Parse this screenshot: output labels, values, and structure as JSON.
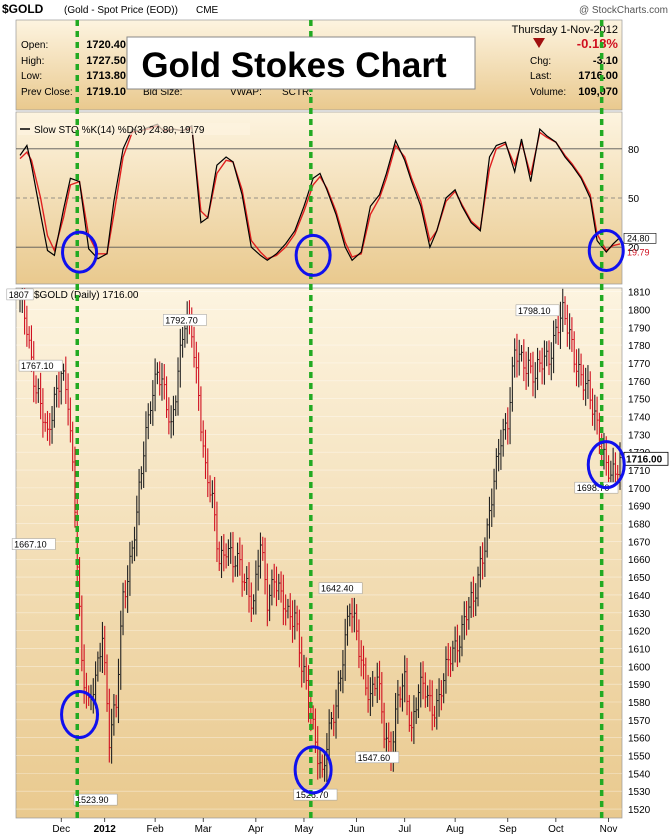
{
  "header": {
    "symbol": "$GOLD",
    "description": "(Gold - Spot Price (EOD))",
    "exchange": "CME",
    "date": "Thursday  1-Nov-2012",
    "watermark": "@ StockCharts.com"
  },
  "quote": {
    "labels": [
      "Open:",
      "High:",
      "Low:",
      "Prev Close:"
    ],
    "values": [
      "1720.40",
      "1727.50",
      "1713.80",
      "1719.10"
    ],
    "extra_labels": [
      "Bid Size:",
      "VWAP:",
      "SCTR:"
    ],
    "change_pct": "-0.18%",
    "right_labels": [
      "Chg:",
      "Last:",
      "Volume:"
    ],
    "right_values": [
      "-3.10",
      "1716.00",
      "109,070"
    ]
  },
  "title_box": "Gold Stokes Chart",
  "colors": {
    "price_up": "#222222",
    "price_down": "#d01020",
    "sto_k": "#000000",
    "sto_d": "#e02020",
    "marker_line": "#22aa22",
    "circle": "#1010ee",
    "panel_bg_top": "#fdf4e0",
    "panel_bg_bottom": "#e9c98e"
  },
  "chart_data": [
    {
      "type": "line",
      "legend": "Slow STO %K(14) %D(3) 24.80, 19.79",
      "series": [
        {
          "name": "%K(14)",
          "last": 24.8
        },
        {
          "name": "%D(3)",
          "last": 19.79
        }
      ],
      "y_ticks": [
        80,
        50,
        20
      ],
      "ylim": [
        0,
        100
      ],
      "x": [
        0,
        3,
        5,
        9,
        12,
        15,
        19,
        22,
        26,
        30,
        34,
        38,
        41,
        45,
        49,
        52,
        56,
        60,
        63,
        67,
        71,
        75,
        79,
        82,
        86,
        90,
        93,
        97,
        101,
        105,
        108,
        112,
        116,
        120,
        124,
        128,
        131,
        134,
        138,
        142,
        145,
        149,
        153,
        157,
        160,
        164,
        168,
        171,
        175,
        179,
        182,
        186,
        190,
        193,
        197,
        201,
        205,
        208,
        212,
        216,
        219,
        223,
        227,
        230,
        234,
        238,
        241,
        245,
        249,
        252,
        256,
        259,
        262
      ],
      "k": [
        76,
        82,
        70,
        40,
        18,
        15,
        43,
        62,
        60,
        19,
        13,
        16,
        48,
        80,
        92,
        91,
        93,
        95,
        90,
        92,
        91,
        94,
        35,
        38,
        70,
        75,
        72,
        52,
        20,
        15,
        12,
        16,
        22,
        30,
        45,
        62,
        65,
        55,
        40,
        20,
        12,
        17,
        45,
        52,
        65,
        85,
        73,
        60,
        45,
        20,
        30,
        50,
        55,
        45,
        35,
        30,
        75,
        82,
        84,
        66,
        86,
        60,
        92,
        88,
        84,
        75,
        70,
        62,
        50,
        24,
        17,
        22,
        26
      ],
      "d": [
        74,
        78,
        73,
        50,
        27,
        18,
        38,
        58,
        60,
        27,
        16,
        16,
        40,
        75,
        90,
        91,
        92,
        94,
        91,
        92,
        91,
        93,
        42,
        38,
        65,
        73,
        72,
        55,
        24,
        17,
        13,
        15,
        20,
        28,
        42,
        58,
        63,
        56,
        42,
        23,
        14,
        16,
        40,
        50,
        62,
        82,
        75,
        62,
        48,
        24,
        30,
        48,
        54,
        46,
        36,
        31,
        68,
        80,
        83,
        70,
        84,
        64,
        90,
        87,
        84,
        76,
        71,
        63,
        52,
        28,
        18,
        21,
        22
      ],
      "markers_x": [
        25,
        127,
        254
      ],
      "circles": [
        {
          "x": 26,
          "y": 17
        },
        {
          "x": 128,
          "y": 15
        },
        {
          "x": 256,
          "y": 18
        }
      ]
    },
    {
      "type": "bar",
      "legend": "$GOLD (Daily) 1716.00",
      "ylim": [
        1515,
        1812
      ],
      "y_ticks": [
        1520,
        1530,
        1540,
        1550,
        1560,
        1570,
        1580,
        1590,
        1600,
        1610,
        1620,
        1630,
        1640,
        1650,
        1660,
        1670,
        1680,
        1690,
        1700,
        1710,
        1720,
        1730,
        1740,
        1750,
        1760,
        1770,
        1780,
        1790,
        1800,
        1810
      ],
      "x_labels": [
        {
          "x": 18,
          "label": "Dec"
        },
        {
          "x": 37,
          "label": "2012"
        },
        {
          "x": 59,
          "label": "Feb"
        },
        {
          "x": 80,
          "label": "Mar"
        },
        {
          "x": 103,
          "label": "Apr"
        },
        {
          "x": 124,
          "label": "May"
        },
        {
          "x": 147,
          "label": "Jun"
        },
        {
          "x": 168,
          "label": "Jul"
        },
        {
          "x": 190,
          "label": "Aug"
        },
        {
          "x": 213,
          "label": "Sep"
        },
        {
          "x": 234,
          "label": "Oct"
        },
        {
          "x": 257,
          "label": "Nov"
        }
      ],
      "close_x": [
        0,
        3,
        6,
        9,
        12,
        15,
        18,
        21,
        24,
        27,
        30,
        33,
        36,
        39,
        42,
        45,
        48,
        51,
        54,
        57,
        60,
        63,
        66,
        69,
        72,
        75,
        78,
        81,
        84,
        87,
        90,
        93,
        96,
        99,
        102,
        105,
        108,
        111,
        114,
        117,
        120,
        123,
        126,
        129,
        132,
        135,
        138,
        141,
        144,
        147,
        150,
        153,
        156,
        159,
        162,
        165,
        168,
        171,
        174,
        177,
        180,
        183,
        186,
        189,
        192,
        195,
        198,
        201,
        204,
        207,
        210,
        213,
        216,
        219,
        222,
        225,
        228,
        231,
        234,
        237,
        240,
        243,
        246,
        249,
        252,
        255,
        258,
        261,
        262
      ],
      "close": [
        1802,
        1790,
        1765,
        1745,
        1725,
        1752,
        1767,
        1745,
        1690,
        1605,
        1575,
        1590,
        1622,
        1560,
        1575,
        1640,
        1660,
        1682,
        1720,
        1752,
        1765,
        1750,
        1735,
        1768,
        1790,
        1788,
        1755,
        1708,
        1690,
        1662,
        1668,
        1655,
        1658,
        1648,
        1632,
        1668,
        1640,
        1650,
        1635,
        1630,
        1632,
        1598,
        1580,
        1562,
        1538,
        1560,
        1580,
        1608,
        1630,
        1618,
        1600,
        1580,
        1592,
        1567,
        1552,
        1578,
        1592,
        1567,
        1586,
        1585,
        1578,
        1582,
        1595,
        1610,
        1618,
        1628,
        1635,
        1660,
        1675,
        1700,
        1730,
        1740,
        1773,
        1770,
        1772,
        1762,
        1768,
        1775,
        1790,
        1795,
        1786,
        1772,
        1758,
        1748,
        1738,
        1718,
        1702,
        1712,
        1716
      ],
      "labels": [
        {
          "x": 0,
          "y": 1807,
          "text": "1807"
        },
        {
          "x": 9,
          "y": 1767.1,
          "text": "1767.10"
        },
        {
          "x": 6,
          "y": 1667.1,
          "text": "1667.10"
        },
        {
          "x": 33,
          "y": 1523.9,
          "text": "1523.90"
        },
        {
          "x": 72,
          "y": 1792.7,
          "text": "1792.70"
        },
        {
          "x": 129,
          "y": 1526.7,
          "text": "1526.70"
        },
        {
          "x": 140,
          "y": 1642.4,
          "text": "1642.40"
        },
        {
          "x": 156,
          "y": 1547.6,
          "text": "1547.60"
        },
        {
          "x": 226,
          "y": 1798.1,
          "text": "1798.10"
        },
        {
          "x": 252,
          "y": 1698.7,
          "text": "1698.70"
        }
      ],
      "last": {
        "value": 1716.0,
        "text": "1716.00"
      },
      "circles": [
        {
          "x": 26,
          "y": 1573
        },
        {
          "x": 128,
          "y": 1542
        },
        {
          "x": 256,
          "y": 1713
        }
      ]
    }
  ]
}
